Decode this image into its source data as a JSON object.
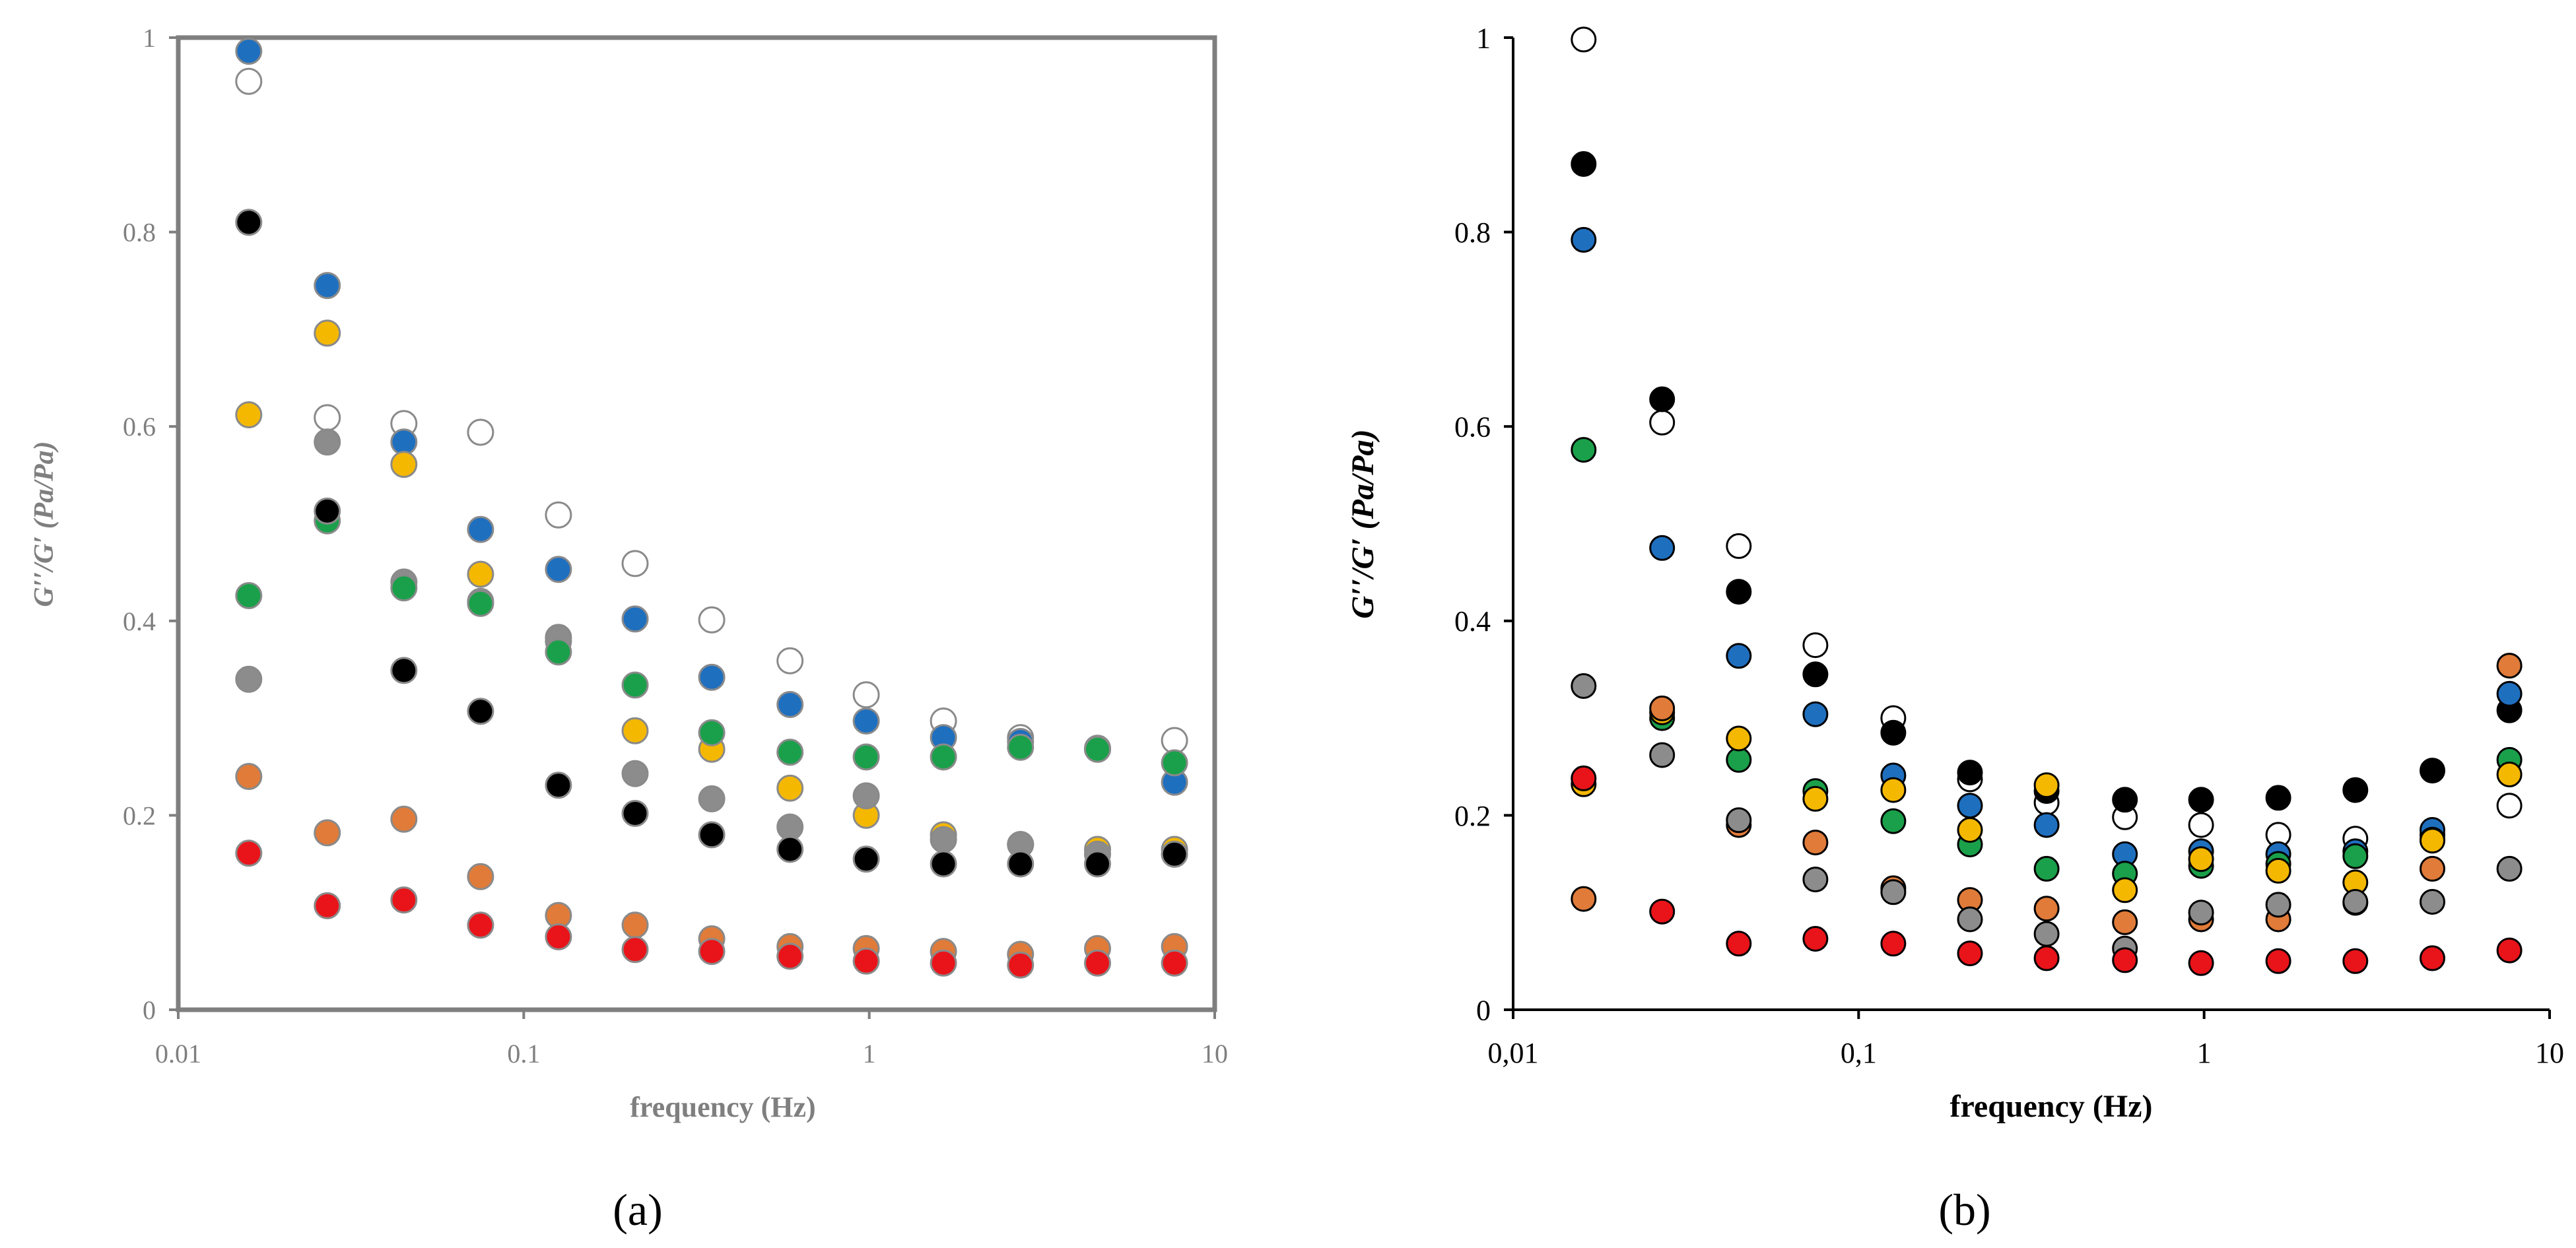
{
  "chart_data": [
    {
      "panel_label": "(a)",
      "type": "scatter",
      "xscale": "log",
      "xlim": [
        0.01,
        10
      ],
      "ylim": [
        0,
        1
      ],
      "xlabel": "frequency (Hz)",
      "ylabel": "G′′/G′ (Pa/Pa)",
      "xtick_labels": [
        "0.01",
        "0.1",
        "1",
        "10"
      ],
      "ytick_labels": [
        "0",
        "0.2",
        "0.4",
        "0.6",
        "0.8",
        "1"
      ],
      "frame": "box",
      "x": [
        0.016,
        0.027,
        0.045,
        0.075,
        0.126,
        0.21,
        0.35,
        0.59,
        0.98,
        1.64,
        2.74,
        4.58,
        7.65
      ],
      "series": [
        {
          "name": "white",
          "color": "#ffffff",
          "values": [
            0.955,
            0.609,
            0.603,
            0.594,
            0.509,
            0.459,
            0.401,
            0.359,
            0.324,
            0.297,
            0.28,
            0.269,
            0.277
          ]
        },
        {
          "name": "blue",
          "color": "#1f6fbf",
          "values": [
            0.986,
            0.745,
            0.584,
            0.494,
            0.453,
            0.402,
            0.342,
            0.314,
            0.297,
            0.28,
            0.276,
            0.268,
            0.234
          ]
        },
        {
          "name": "yellow",
          "color": "#f5b800",
          "values": [
            0.612,
            0.696,
            0.561,
            0.448,
            0.379,
            0.287,
            0.268,
            0.228,
            0.2,
            0.18,
            0.17,
            0.165,
            0.165
          ]
        },
        {
          "name": "grey",
          "color": "#8c8c8c",
          "values": [
            0.34,
            0.584,
            0.44,
            0.42,
            0.383,
            0.243,
            0.217,
            0.188,
            0.22,
            0.175,
            0.17,
            0.16,
            0.16
          ]
        },
        {
          "name": "green",
          "color": "#1aa04a",
          "values": [
            0.426,
            0.503,
            0.434,
            0.418,
            0.368,
            0.334,
            0.285,
            0.265,
            0.26,
            0.26,
            0.27,
            0.268,
            0.254
          ]
        },
        {
          "name": "black",
          "color": "#000000",
          "values": [
            0.81,
            0.513,
            0.349,
            0.307,
            0.231,
            0.202,
            0.18,
            0.165,
            0.155,
            0.15,
            0.15,
            0.15,
            0.16
          ]
        },
        {
          "name": "orange",
          "color": "#e07b39",
          "values": [
            0.24,
            0.182,
            0.196,
            0.137,
            0.097,
            0.087,
            0.073,
            0.065,
            0.063,
            0.06,
            0.057,
            0.063,
            0.065
          ]
        },
        {
          "name": "red",
          "color": "#e8141a",
          "values": [
            0.161,
            0.107,
            0.113,
            0.087,
            0.075,
            0.062,
            0.06,
            0.055,
            0.05,
            0.048,
            0.046,
            0.048,
            0.048
          ]
        }
      ]
    },
    {
      "panel_label": "(b)",
      "type": "scatter",
      "xscale": "log",
      "xlim": [
        0.01,
        10
      ],
      "ylim": [
        0,
        1
      ],
      "xlabel": "frequency (Hz)",
      "ylabel": "G′′/G′ (Pa/Pa)",
      "xtick_labels": [
        "0,01",
        "0,1",
        "1",
        "10"
      ],
      "ytick_labels": [
        "0",
        "0.2",
        "0.4",
        "0.6",
        "0.8",
        "1"
      ],
      "frame": "axes",
      "x": [
        0.016,
        0.027,
        0.045,
        0.075,
        0.126,
        0.21,
        0.35,
        0.59,
        0.98,
        1.64,
        2.74,
        4.58,
        7.65
      ],
      "series": [
        {
          "name": "white",
          "color": "#ffffff",
          "values": [
            0.998,
            0.604,
            0.477,
            0.375,
            0.3,
            0.237,
            0.213,
            0.198,
            0.19,
            0.18,
            0.176,
            0.18,
            0.21
          ]
        },
        {
          "name": "black",
          "color": "#000000",
          "values": [
            0.87,
            0.628,
            0.43,
            0.345,
            0.285,
            0.244,
            0.225,
            0.216,
            0.216,
            0.218,
            0.226,
            0.246,
            0.308
          ]
        },
        {
          "name": "blue",
          "color": "#1f6fbf",
          "values": [
            0.792,
            0.475,
            0.364,
            0.304,
            0.241,
            0.21,
            0.19,
            0.16,
            0.163,
            0.16,
            0.163,
            0.185,
            0.325
          ]
        },
        {
          "name": "green",
          "color": "#1aa04a",
          "values": [
            0.576,
            0.3,
            0.257,
            0.225,
            0.194,
            0.17,
            0.145,
            0.14,
            0.148,
            0.15,
            0.158,
            0.175,
            0.257
          ]
        },
        {
          "name": "yellow",
          "color": "#f5b800",
          "values": [
            0.232,
            0.306,
            0.279,
            0.217,
            0.226,
            0.185,
            0.231,
            0.123,
            0.155,
            0.143,
            0.131,
            0.174,
            0.242
          ]
        },
        {
          "name": "orange",
          "color": "#e07b39",
          "values": [
            0.114,
            0.31,
            0.19,
            0.172,
            0.125,
            0.113,
            0.104,
            0.09,
            0.093,
            0.093,
            0.11,
            0.145,
            0.354
          ]
        },
        {
          "name": "grey",
          "color": "#8c8c8c",
          "values": [
            0.333,
            0.262,
            0.195,
            0.134,
            0.121,
            0.093,
            0.078,
            0.063,
            0.1,
            0.108,
            0.111,
            0.111,
            0.145
          ]
        },
        {
          "name": "red",
          "color": "#e8141a",
          "values": [
            0.238,
            0.101,
            0.068,
            0.073,
            0.068,
            0.058,
            0.053,
            0.051,
            0.048,
            0.05,
            0.05,
            0.053,
            0.061
          ]
        }
      ]
    }
  ]
}
